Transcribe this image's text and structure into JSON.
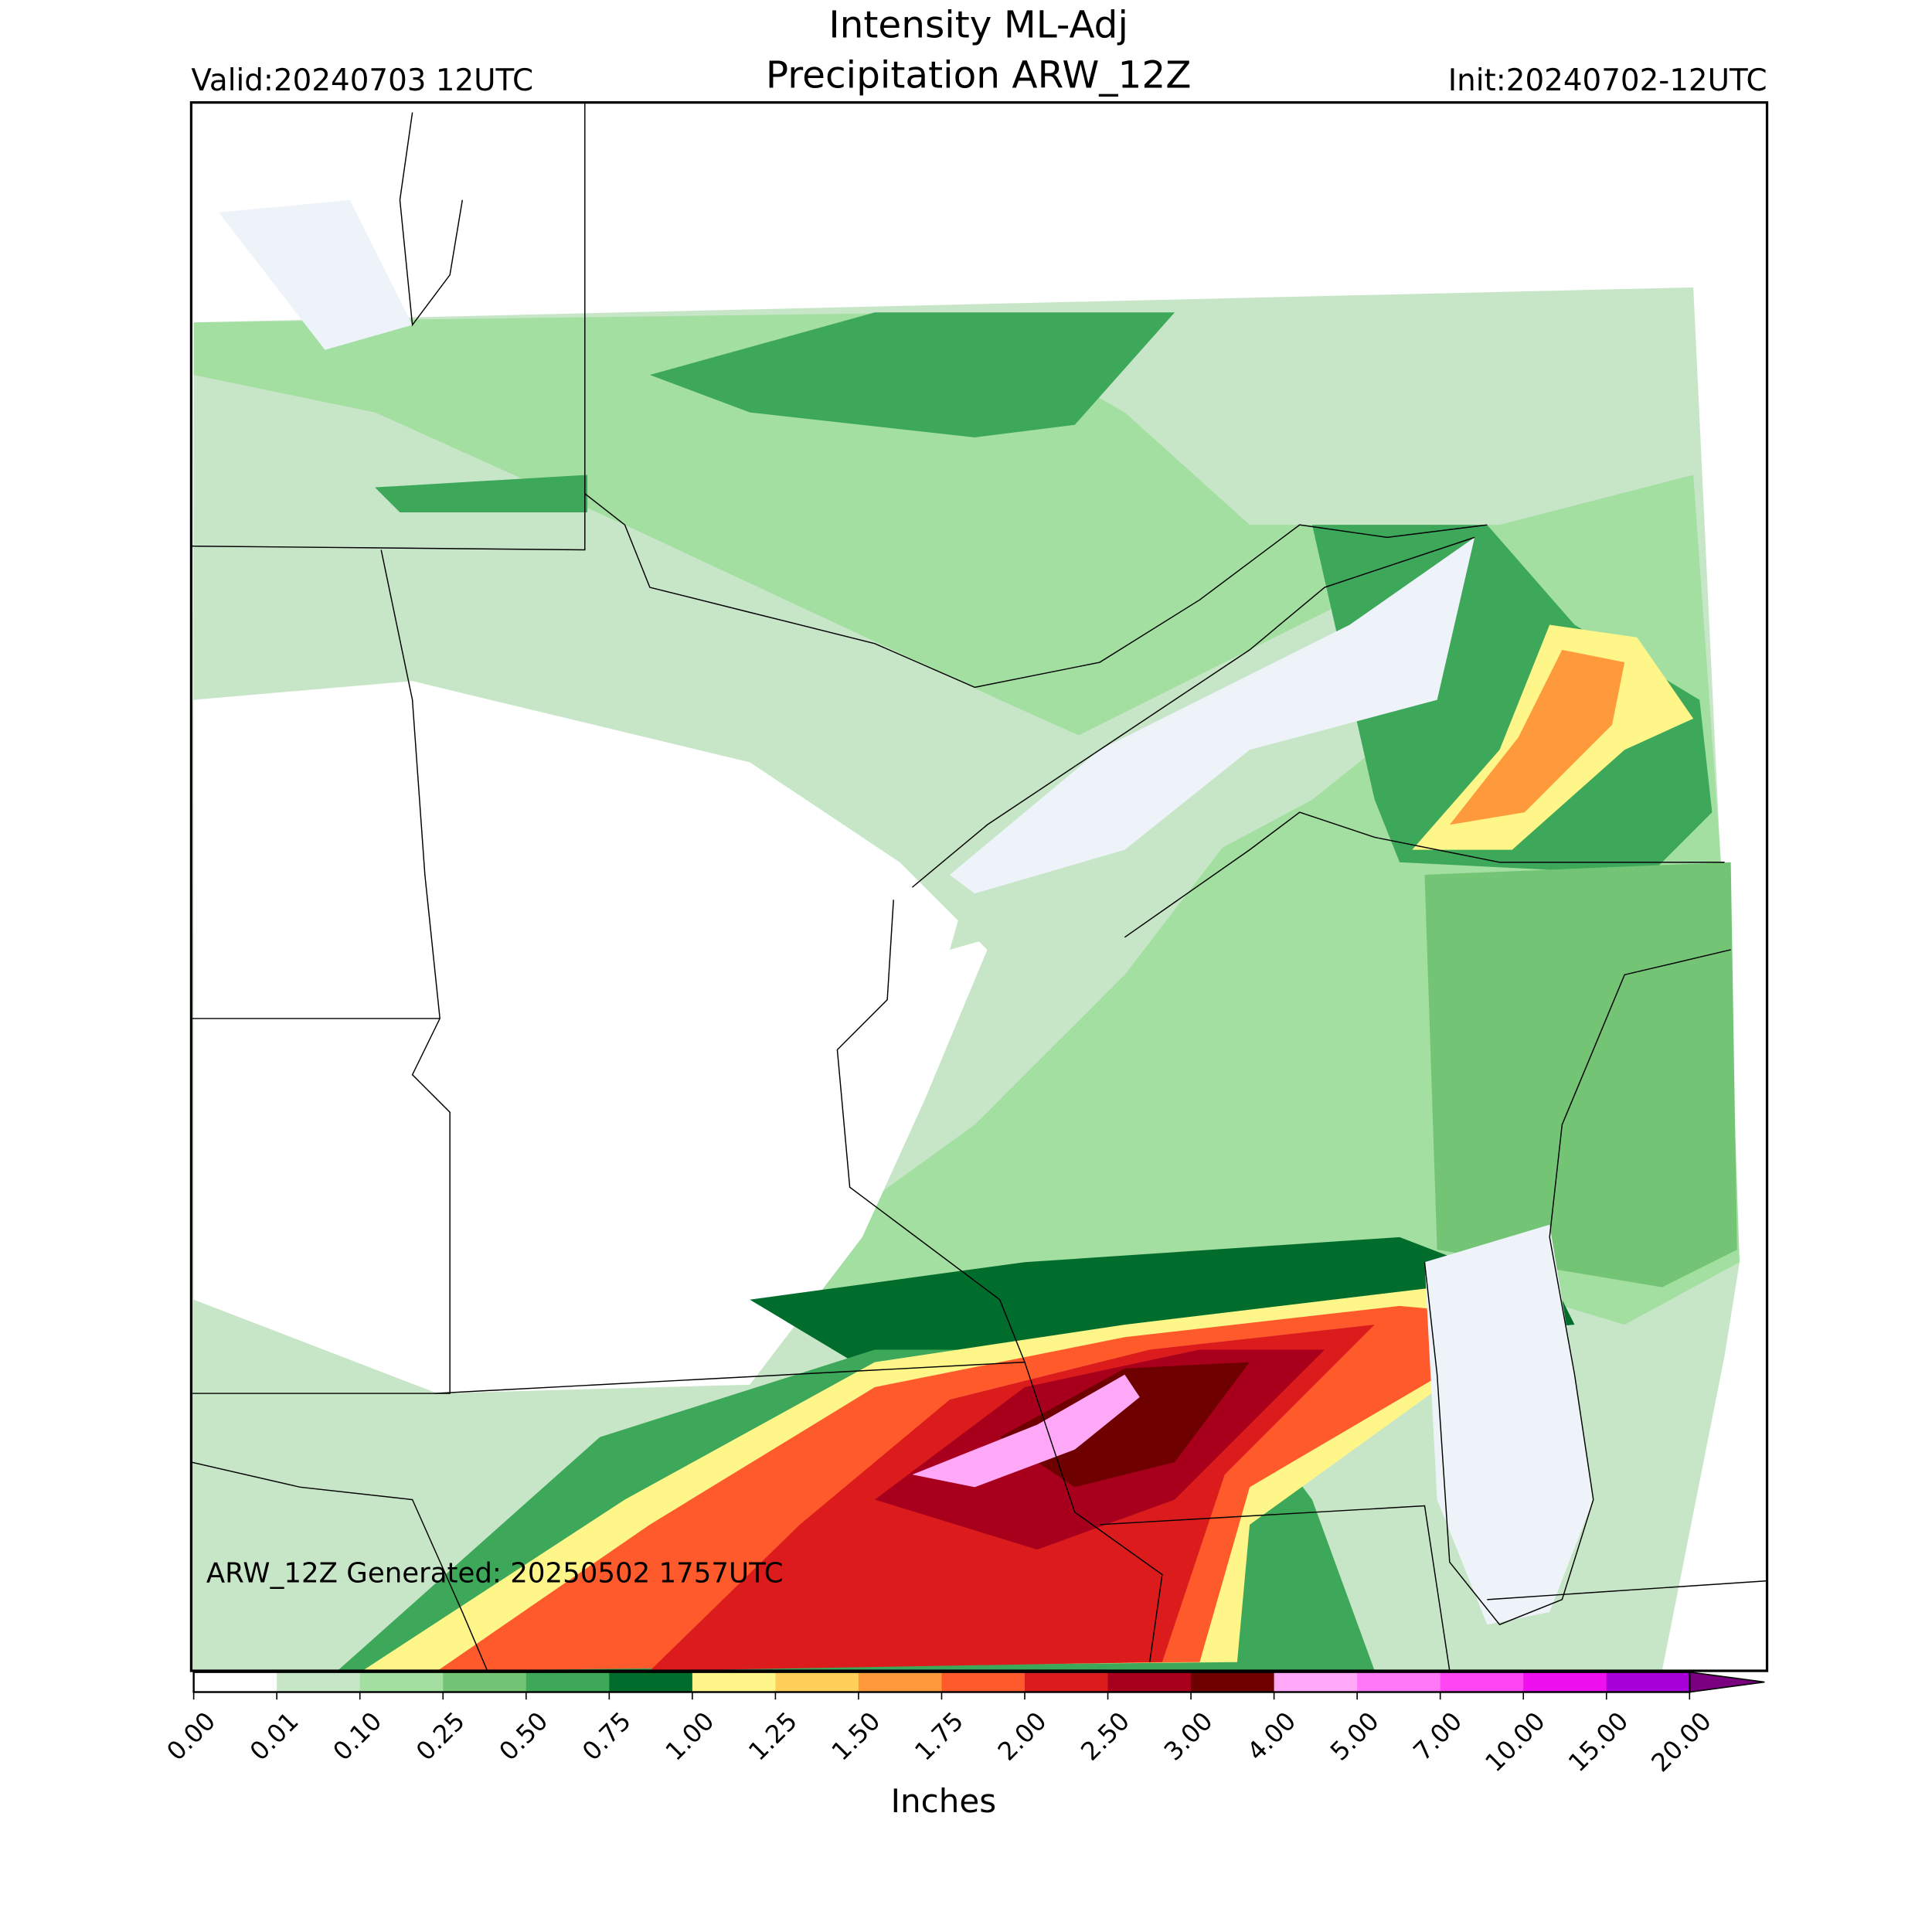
{
  "header": {
    "title": "Intensity ML-Adj",
    "subtitle": "Precipitation ARW_12Z",
    "valid": "Valid:20240703 12UTC",
    "init": "Init:20240702-12UTC"
  },
  "map": {
    "annotation": "ARW_12Z Generated: 20250502 1757UTC"
  },
  "colorbar": {
    "label": "Inches",
    "levels": [
      {
        "value": 0,
        "label": "0.00"
      },
      {
        "value": 0.01,
        "label": "0.01"
      },
      {
        "value": 0.1,
        "label": "0.10"
      },
      {
        "value": 0.25,
        "label": "0.25"
      },
      {
        "value": 0.5,
        "label": "0.50"
      },
      {
        "value": 0.75,
        "label": "0.75"
      },
      {
        "value": 1,
        "label": "1.00"
      },
      {
        "value": 1.25,
        "label": "1.25"
      },
      {
        "value": 1.5,
        "label": "1.50"
      },
      {
        "value": 1.75,
        "label": "1.75"
      },
      {
        "value": 2,
        "label": "2.00"
      },
      {
        "value": 2.5,
        "label": "2.50"
      },
      {
        "value": 3,
        "label": "3.00"
      },
      {
        "value": 4,
        "label": "4.00"
      },
      {
        "value": 5,
        "label": "5.00"
      },
      {
        "value": 7,
        "label": "7.00"
      },
      {
        "value": 10,
        "label": "10.00"
      },
      {
        "value": 15,
        "label": "15.00"
      },
      {
        "value": 20,
        "label": "20.00"
      }
    ],
    "colors": [
      "#ffffff",
      "#c7e6c7",
      "#a2dfa0",
      "#74c476",
      "#3da85a",
      "#006d2c",
      "#fff68a",
      "#ffcf5a",
      "#ff9a3c",
      "#ff5a2c",
      "#dc1c1c",
      "#a8001c",
      "#6e0000",
      "#ffa8f8",
      "#ff78f8",
      "#ff44f4",
      "#ee10ee",
      "#a800d8"
    ],
    "extend_color": "#7a0080"
  }
}
